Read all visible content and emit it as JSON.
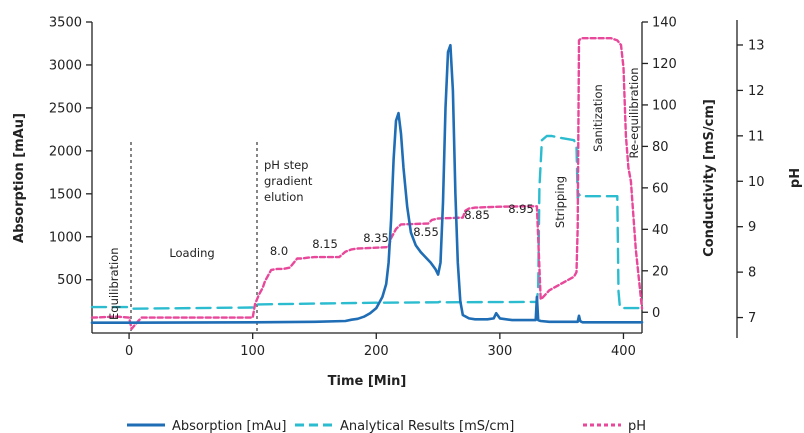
{
  "chart_data": {
    "type": "line",
    "xlabel": "Time [Min]",
    "ylabel_left": "Absorption [mAu]",
    "ylabel_right1": "Conductivity [mS/cm]",
    "ylabel_right2": "pH",
    "xlim": [
      -30,
      415
    ],
    "xticks": [
      0,
      100,
      200,
      300,
      400
    ],
    "ylim_left": [
      -120,
      3500
    ],
    "yticks_left": [
      500,
      1000,
      1500,
      2000,
      2500,
      3000,
      3500
    ],
    "ylim_right1": [
      -10,
      140
    ],
    "yticks_right1": [
      0,
      20,
      40,
      60,
      80,
      100,
      120,
      140
    ],
    "ylim_right2": [
      6.55,
      13.55
    ],
    "yticks_right2": [
      7,
      8,
      9,
      10,
      11,
      12,
      13
    ],
    "grid": false,
    "legend_position": "bottom",
    "colors": {
      "absorption": "#1f6db5",
      "conductivity": "#2bbcd0",
      "ph": "#e8489a",
      "axis": "#222222"
    },
    "series": [
      {
        "name": "Absorption [mAu]",
        "axis": "left",
        "style": "solid",
        "x": [
          -30,
          0,
          100,
          150,
          175,
          180,
          185,
          190,
          195,
          200,
          205,
          208,
          210,
          212,
          214,
          216,
          218,
          220,
          222,
          225,
          228,
          232,
          236,
          240,
          244,
          248,
          250,
          252,
          254,
          256,
          258,
          260,
          262,
          264,
          266,
          268,
          270,
          275,
          280,
          290,
          295,
          297,
          300,
          310,
          320,
          329,
          330,
          331,
          333,
          340,
          350,
          360,
          363,
          364,
          365,
          366,
          367,
          370,
          380,
          390,
          400,
          415
        ],
        "y": [
          0,
          0,
          5,
          10,
          20,
          35,
          45,
          70,
          110,
          170,
          300,
          450,
          700,
          1200,
          1900,
          2350,
          2440,
          2200,
          1800,
          1350,
          1050,
          900,
          820,
          760,
          700,
          620,
          560,
          700,
          1400,
          2500,
          3150,
          3230,
          2700,
          1500,
          700,
          250,
          90,
          50,
          40,
          40,
          50,
          110,
          50,
          30,
          30,
          30,
          300,
          30,
          20,
          10,
          10,
          10,
          10,
          80,
          20,
          10,
          5,
          5,
          5,
          5,
          5,
          5
        ]
      },
      {
        "name": "Analytical Results [mS/cm]",
        "axis": "right1",
        "style": "dashed",
        "x": [
          -30,
          0,
          2,
          100,
          102,
          105,
          150,
          200,
          250,
          252,
          254,
          330,
          331,
          332,
          334,
          338,
          342,
          350,
          360,
          362,
          363,
          364,
          365,
          390,
          395,
          396,
          397,
          398,
          400,
          415
        ],
        "y": [
          2.5,
          2.5,
          1.7,
          2.3,
          3.8,
          3.8,
          4.2,
          4.6,
          4.8,
          5.2,
          4.8,
          5,
          12,
          60,
          83,
          85,
          85,
          84,
          83,
          80,
          55,
          57,
          56,
          56,
          56,
          10,
          3,
          2,
          2,
          2
        ]
      },
      {
        "name": "pH",
        "axis": "right2",
        "style": "dotted",
        "x": [
          -30,
          -10,
          0,
          2,
          5,
          10,
          100,
          102,
          105,
          108,
          110,
          115,
          120,
          125,
          130,
          136,
          140,
          145,
          150,
          170,
          175,
          180,
          185,
          210,
          212,
          214,
          216,
          218,
          220,
          242,
          245,
          250,
          270,
          272,
          275,
          280,
          300,
          320,
          330,
          333,
          335,
          340,
          360,
          362,
          363,
          364,
          366,
          390,
          395,
          398,
          400,
          402,
          404,
          406,
          410,
          415
        ],
        "y": [
          7,
          7.02,
          7,
          6.75,
          6.85,
          7,
          7,
          7.3,
          7.5,
          7.65,
          7.8,
          8.05,
          8.07,
          8.07,
          8.1,
          8.3,
          8.3,
          8.32,
          8.33,
          8.33,
          8.45,
          8.5,
          8.52,
          8.55,
          8.75,
          8.85,
          8.95,
          9,
          9.05,
          9.07,
          9.15,
          9.18,
          9.2,
          9.35,
          9.4,
          9.42,
          9.44,
          9.45,
          9.45,
          7.4,
          7.45,
          7.6,
          7.9,
          8,
          9,
          13.1,
          13.15,
          13.15,
          13.1,
          13,
          12.5,
          11,
          10.3,
          10,
          8.5,
          7.2
        ]
      }
    ],
    "annotations": {
      "equilibration": "Equilibration",
      "loading": "Loading",
      "ph_step_1": "pH step",
      "ph_step_2": "gradient",
      "ph_step_3": "elution",
      "ph_8_0": "8.0",
      "ph_8_15": "8.15",
      "ph_8_35": "8.35",
      "ph_8_55": "8.55",
      "ph_8_85": "8.85",
      "ph_8_95": "8.95",
      "stripping": "Stripping",
      "sanitization": "Sanitization",
      "re_equilibration": "Re-equilibration"
    },
    "legend": [
      {
        "label": "Absorption [mAu]",
        "style": "solid",
        "color": "#1f6db5"
      },
      {
        "label": "Analytical Results [mS/cm]",
        "style": "dashed",
        "color": "#2bbcd0"
      },
      {
        "label": "pH",
        "style": "dotted",
        "color": "#e8489a"
      }
    ]
  }
}
